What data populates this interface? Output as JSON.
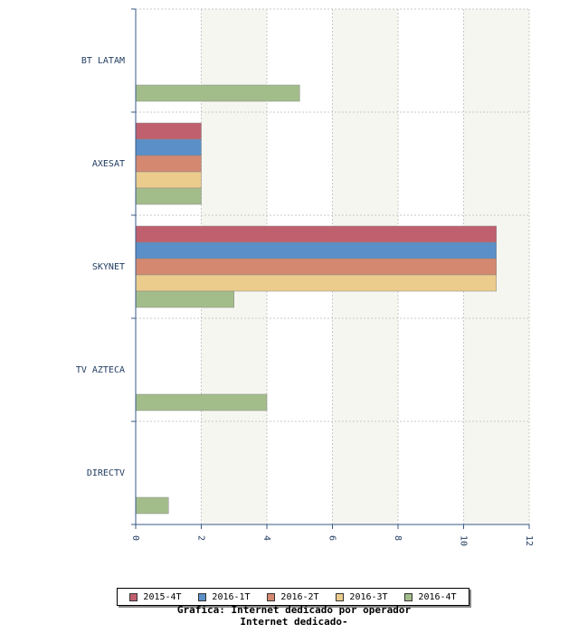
{
  "chart_data": {
    "type": "bar",
    "orientation": "horizontal",
    "categories": [
      "BT LATAM",
      "AXESAT",
      "SKYNET",
      "TV AZTECA",
      "DIRECTV"
    ],
    "series": [
      {
        "name": "2015-4T",
        "color": "#c0606e",
        "values": [
          null,
          2,
          11,
          null,
          null
        ]
      },
      {
        "name": "2016-1T",
        "color": "#5b8fc7",
        "values": [
          null,
          2,
          11,
          null,
          null
        ]
      },
      {
        "name": "2016-2T",
        "color": "#d48870",
        "values": [
          null,
          2,
          11,
          null,
          null
        ]
      },
      {
        "name": "2016-3T",
        "color": "#ebcc8c",
        "values": [
          null,
          2,
          11,
          null,
          null
        ]
      },
      {
        "name": "2016-4T",
        "color": "#a3bd8a",
        "values": [
          5,
          2,
          3,
          4,
          1
        ]
      }
    ],
    "x_ticks": [
      "0",
      "2",
      "4",
      "6",
      "8",
      "10",
      "12"
    ],
    "xlim": [
      0,
      12
    ],
    "grid": true,
    "legend_position": "bottom",
    "caption_line1": "Grafica: Internet dedicado por operador",
    "caption_line2": "Internet dedicado-"
  },
  "legend": [
    {
      "label": "2015-4T",
      "color": "#c0606e"
    },
    {
      "label": "2016-1T",
      "color": "#5b8fc7"
    },
    {
      "label": "2016-2T",
      "color": "#d48870"
    },
    {
      "label": "2016-3T",
      "color": "#ebcc8c"
    },
    {
      "label": "2016-4T",
      "color": "#a3bd8a"
    }
  ]
}
